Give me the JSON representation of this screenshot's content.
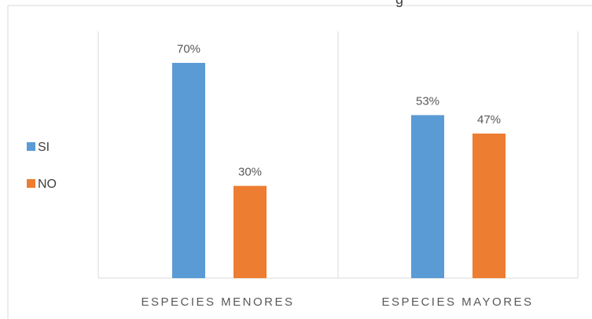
{
  "chart_data": {
    "type": "bar",
    "title_fragment": "g",
    "categories": [
      "ESPECIES MENORES",
      "ESPECIES MAYORES"
    ],
    "series": [
      {
        "name": "SI",
        "color": "#5b9bd5",
        "values": [
          70,
          53
        ],
        "labels": [
          "70%",
          "53%"
        ]
      },
      {
        "name": "NO",
        "color": "#ed7d31",
        "values": [
          30,
          47
        ],
        "labels": [
          "30%",
          "47%"
        ]
      }
    ],
    "ylim": [
      0,
      80
    ],
    "grid": false,
    "legend_position": "left",
    "xlabel": "",
    "ylabel": ""
  }
}
